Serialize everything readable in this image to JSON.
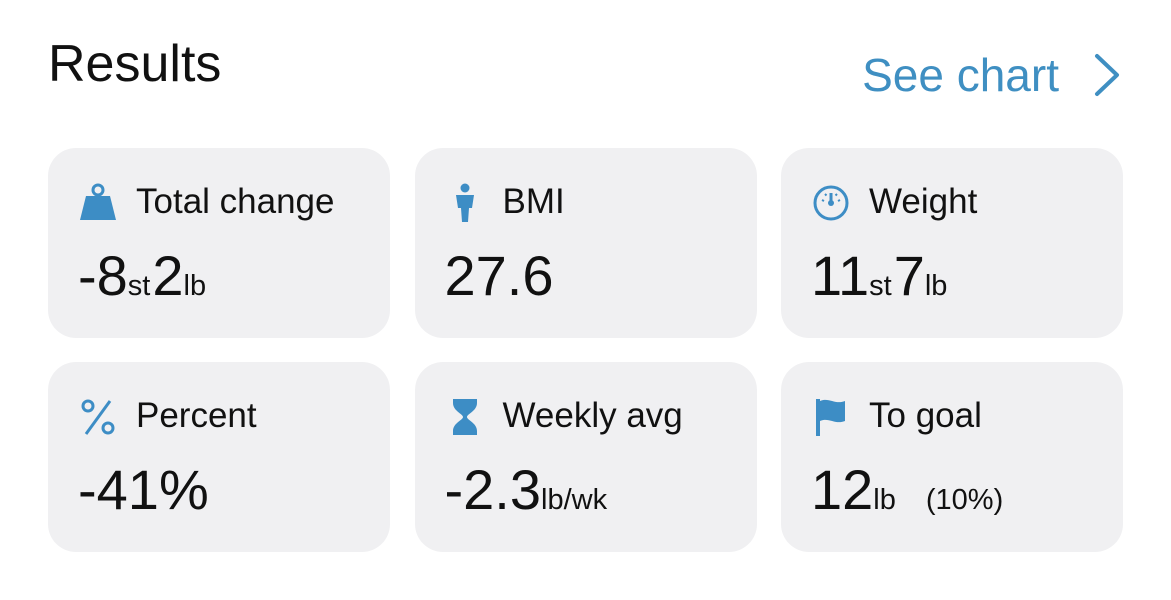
{
  "header": {
    "title": "Results",
    "link": "See chart"
  },
  "cards": [
    {
      "label": "Total change",
      "value": [
        [
          "-8",
          "st"
        ],
        [
          "2",
          "lb"
        ]
      ]
    },
    {
      "label": "BMI",
      "value": [
        [
          "27.6"
        ]
      ]
    },
    {
      "label": "Weight",
      "value": [
        [
          "11",
          "st"
        ],
        [
          "7",
          "lb"
        ]
      ]
    },
    {
      "label": "Percent",
      "value": [
        [
          "-41%"
        ]
      ]
    },
    {
      "label": "Weekly avg",
      "value": [
        [
          "-2.3",
          "lb/wk"
        ]
      ]
    },
    {
      "label": "To goal",
      "value": [
        [
          "12",
          "lb"
        ]
      ],
      "note": "(10%)"
    }
  ]
}
